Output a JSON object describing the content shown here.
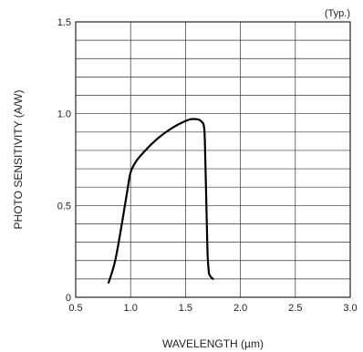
{
  "chart_data": {
    "type": "line",
    "annotation": "(Typ.)",
    "xlabel": "WAVELENGTH (µm)",
    "ylabel": "PHOTO SENSITIVITY (A/W)",
    "xlim": [
      0.5,
      3.0
    ],
    "ylim": [
      0,
      1.5
    ],
    "x_ticks": [
      0.5,
      1.0,
      1.5,
      2.0,
      2.5,
      3.0
    ],
    "x_tick_labels": [
      "0.5",
      "1.0",
      "1.5",
      "2.0",
      "2.5",
      "3.0"
    ],
    "y_ticks": [
      0,
      0.5,
      1.0,
      1.5
    ],
    "y_tick_labels": [
      "0",
      "0.5",
      "1.0",
      "1.5"
    ],
    "x_grid_step": 0.5,
    "y_grid_step": 0.1,
    "grid": true,
    "series": [
      {
        "x": [
          0.8,
          0.86,
          0.92,
          0.97,
          1.0,
          1.05,
          1.12,
          1.2,
          1.3,
          1.4,
          1.5,
          1.55,
          1.6,
          1.64,
          1.67,
          1.68,
          1.69,
          1.7,
          1.71,
          1.72,
          1.75
        ],
        "y": [
          0.08,
          0.2,
          0.4,
          0.58,
          0.68,
          0.74,
          0.79,
          0.84,
          0.89,
          0.93,
          0.96,
          0.97,
          0.97,
          0.96,
          0.92,
          0.75,
          0.5,
          0.25,
          0.15,
          0.12,
          0.1
        ]
      }
    ]
  }
}
